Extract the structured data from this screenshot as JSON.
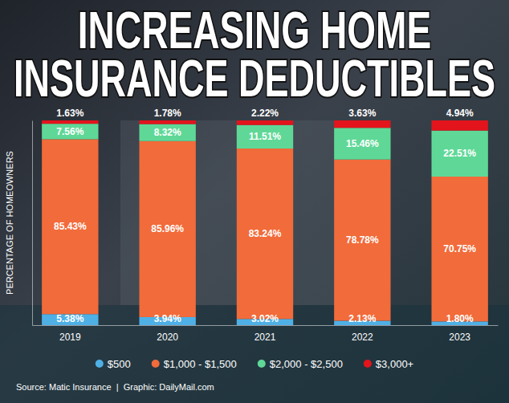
{
  "chart_data": {
    "type": "bar",
    "stacked": true,
    "title": "INCREASING HOME INSURANCE DEDUCTIBLES",
    "ylabel": "PERCENTAGE OF HOMEOWNERS",
    "source": "Source: Matic Insurance  |  Graphic: DailyMail.com",
    "categories": [
      "2019",
      "2020",
      "2021",
      "2022",
      "2023"
    ],
    "series": [
      {
        "name": "$500",
        "color": "#4fb0e6",
        "values": [
          5.38,
          3.94,
          3.02,
          2.13,
          1.8
        ],
        "value_labels": [
          "5.38%",
          "3.94%",
          "3.02%",
          "2.13%",
          "1.80%"
        ]
      },
      {
        "name": "$1,000 - $1,500",
        "color": "#f26b3a",
        "values": [
          85.43,
          85.96,
          83.24,
          78.78,
          70.75
        ],
        "value_labels": [
          "85.43%",
          "85.96%",
          "83.24%",
          "78.78%",
          "70.75%"
        ]
      },
      {
        "name": "$2,000 - $2,500",
        "color": "#5fd897",
        "values": [
          7.56,
          8.32,
          11.51,
          15.46,
          22.51
        ],
        "value_labels": [
          "7.56%",
          "8.32%",
          "11.51%",
          "15.46%",
          "22.51%"
        ]
      },
      {
        "name": "$3,000+",
        "color": "#e3141c",
        "values": [
          1.63,
          1.78,
          2.22,
          3.63,
          4.94
        ],
        "value_labels": [
          "1.63%",
          "1.78%",
          "2.22%",
          "3.63%",
          "4.94%"
        ]
      }
    ],
    "ylim": [
      0,
      100
    ],
    "yticks": [],
    "tick_labels": "x",
    "grid": false,
    "data_labels": true,
    "legend": "bottom"
  }
}
